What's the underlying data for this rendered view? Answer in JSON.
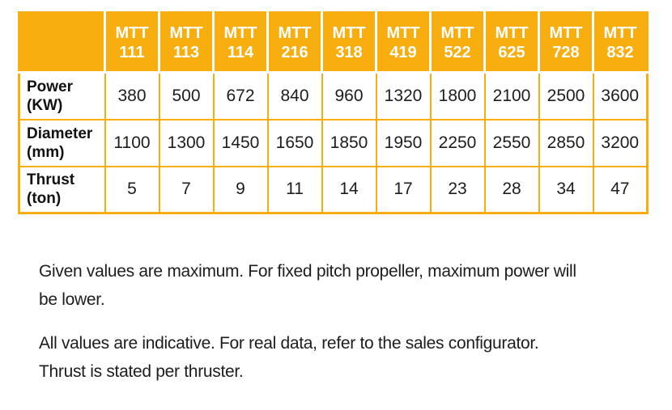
{
  "colors": {
    "accent_orange": "#F7AE0E",
    "header_text": "#FFFFFF",
    "cell_text": "#1D1D1D"
  },
  "table": {
    "corner_label": "",
    "columns": [
      "MTT\n111",
      "MTT\n113",
      "MTT\n114",
      "MTT\n216",
      "MTT\n318",
      "MTT\n419",
      "MTT\n522",
      "MTT\n625",
      "MTT\n728",
      "MTT\n832"
    ],
    "rows": [
      {
        "label": "Power\n(KW)",
        "values": [
          "380",
          "500",
          "672",
          "840",
          "960",
          "1320",
          "1800",
          "2100",
          "2500",
          "3600"
        ]
      },
      {
        "label": "Diameter\n(mm)",
        "values": [
          "1100",
          "1300",
          "1450",
          "1650",
          "1850",
          "1950",
          "2250",
          "2550",
          "2850",
          "3200"
        ]
      },
      {
        "label": "Thrust\n(ton)",
        "values": [
          "5",
          "7",
          "9",
          "11",
          "14",
          "17",
          "23",
          "28",
          "34",
          "47"
        ]
      }
    ]
  },
  "notes": [
    {
      "lines": [
        "Given values are maximum. For fixed pitch propeller, maximum power will",
        "be lower."
      ]
    },
    {
      "lines": [
        "All values are indicative. For real data, refer to the sales configurator.",
        "Thrust is stated per thruster."
      ]
    }
  ]
}
